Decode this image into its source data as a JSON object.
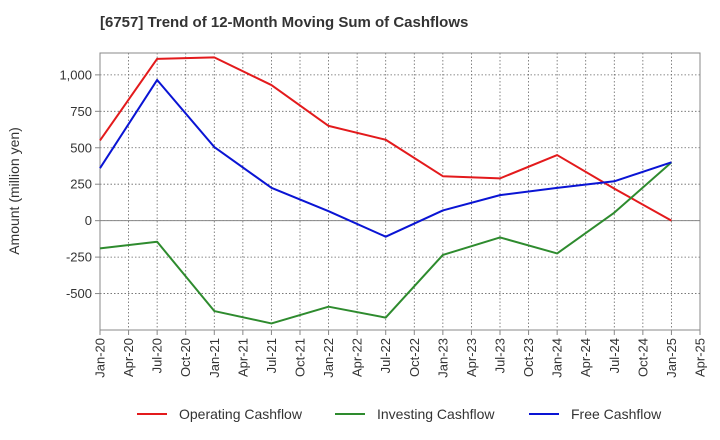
{
  "chart_data": {
    "type": "line",
    "title": "[6757]  Trend of 12-Month Moving Sum of Cashflows",
    "ylabel": "Amount (million yen)",
    "xlabel": "",
    "ylim": [
      -750,
      1150
    ],
    "yticks": [
      -500,
      -250,
      0,
      250,
      500,
      750,
      1000
    ],
    "ytick_labels": [
      "-500",
      "-250",
      "0",
      "250",
      "500",
      "750",
      "1,000"
    ],
    "categories": [
      "Jan-20",
      "Apr-20",
      "Jul-20",
      "Oct-20",
      "Jan-21",
      "Apr-21",
      "Jul-21",
      "Oct-21",
      "Jan-22",
      "Apr-22",
      "Jul-22",
      "Oct-22",
      "Jan-23",
      "Apr-23",
      "Jul-23",
      "Oct-23",
      "Jan-24",
      "Apr-24",
      "Jul-24",
      "Oct-24",
      "Jan-25",
      "Apr-25"
    ],
    "grid": true,
    "legend_position": "bottom",
    "series": [
      {
        "name": "Operating Cashflow",
        "color": "#e31a1c",
        "points": [
          [
            "Jan-20",
            550
          ],
          [
            "Jul-20",
            1110
          ],
          [
            "Jan-21",
            1120
          ],
          [
            "Jul-21",
            930
          ],
          [
            "Jan-22",
            650
          ],
          [
            "Jul-22",
            555
          ],
          [
            "Jan-23",
            305
          ],
          [
            "Jul-23",
            290
          ],
          [
            "Jan-24",
            450
          ],
          [
            "Jul-24",
            220
          ],
          [
            "Jan-25",
            0
          ]
        ]
      },
      {
        "name": "Investing Cashflow",
        "color": "#2e8b2e",
        "points": [
          [
            "Jan-20",
            -190
          ],
          [
            "Jul-20",
            -145
          ],
          [
            "Jan-21",
            -620
          ],
          [
            "Jul-21",
            -705
          ],
          [
            "Jan-22",
            -590
          ],
          [
            "Jul-22",
            -665
          ],
          [
            "Jan-23",
            -235
          ],
          [
            "Jul-23",
            -115
          ],
          [
            "Jan-24",
            -225
          ],
          [
            "Jul-24",
            55
          ],
          [
            "Jan-25",
            400
          ]
        ]
      },
      {
        "name": "Free Cashflow",
        "color": "#0a14d4",
        "points": [
          [
            "Jan-20",
            360
          ],
          [
            "Jul-20",
            965
          ],
          [
            "Jan-21",
            505
          ],
          [
            "Jul-21",
            225
          ],
          [
            "Jan-22",
            65
          ],
          [
            "Jul-22",
            -110
          ],
          [
            "Jan-23",
            70
          ],
          [
            "Jul-23",
            175
          ],
          [
            "Jan-24",
            225
          ],
          [
            "Jul-24",
            270
          ],
          [
            "Jan-25",
            400
          ]
        ]
      }
    ]
  }
}
